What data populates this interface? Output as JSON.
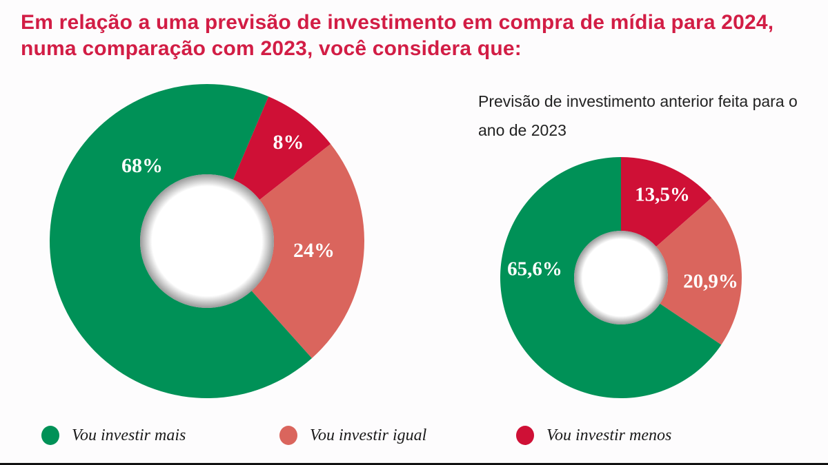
{
  "title": "Em relação a uma previsão de investimento em compra de mídia para 2024, numa comparação com 2023, você considera que:",
  "colors": {
    "mais": "#009157",
    "igual": "#da655d",
    "menos": "#cf1036",
    "title": "#d21d45"
  },
  "chart_data": [
    {
      "type": "pie",
      "donut": true,
      "title": "",
      "slices": [
        {
          "name": "Vou investir menos",
          "value": 8,
          "label": "8%",
          "color": "#cf1036"
        },
        {
          "name": "Vou investir igual",
          "value": 24,
          "label": "24%",
          "color": "#da655d"
        },
        {
          "name": "Vou investir mais",
          "value": 68,
          "label": "68%",
          "color": "#009157"
        }
      ]
    },
    {
      "type": "pie",
      "donut": true,
      "title": "Previsão de investimento anterior feita para o ano de 2023",
      "slices": [
        {
          "name": "Vou investir menos",
          "value": 13.5,
          "label": "13,5%",
          "color": "#cf1036"
        },
        {
          "name": "Vou investir igual",
          "value": 20.9,
          "label": "20,9%",
          "color": "#da655d"
        },
        {
          "name": "Vou investir mais",
          "value": 65.6,
          "label": "65,6%",
          "color": "#009157"
        }
      ]
    }
  ],
  "legend": [
    {
      "label": "Vou investir mais",
      "color": "#009157"
    },
    {
      "label": "Vou investir igual",
      "color": "#da655d"
    },
    {
      "label": "Vou investir menos",
      "color": "#cf1036"
    }
  ]
}
